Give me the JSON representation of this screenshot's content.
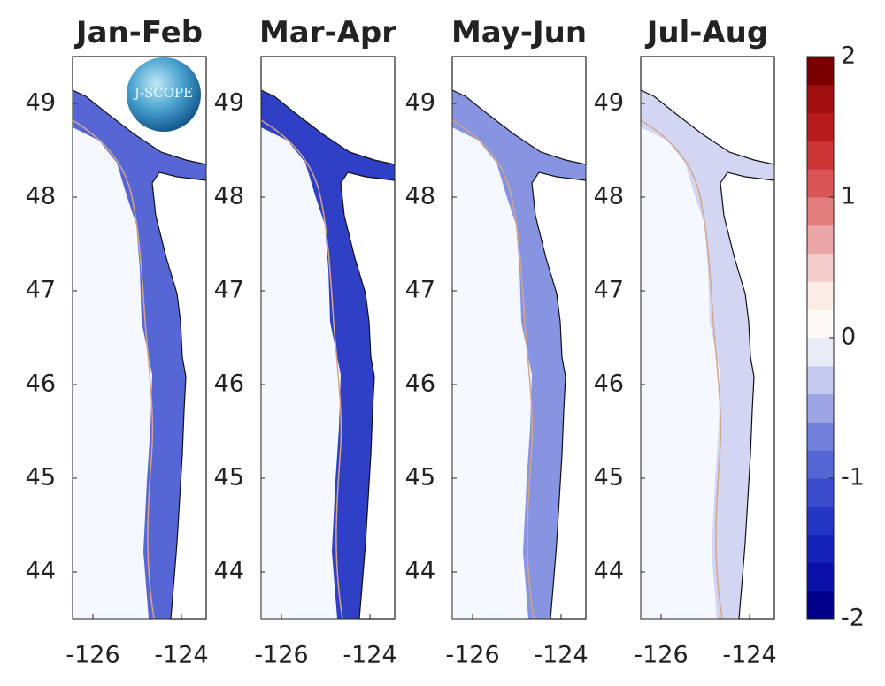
{
  "panels": [
    {
      "title": "Jan-Feb"
    },
    {
      "title": "Mar-Apr"
    },
    {
      "title": "May-Jun"
    },
    {
      "title": "Jul-Aug"
    }
  ],
  "ylim": [
    43.5,
    49.5
  ],
  "yticks": [
    44,
    45,
    46,
    47,
    48,
    49
  ],
  "xlim": [
    -126.46,
    -123.44
  ],
  "xticks": [
    -126,
    -124
  ],
  "colorbar": {
    "lim": [
      -2,
      2
    ],
    "ticks": [
      -2,
      -1,
      0,
      1,
      2
    ],
    "colors": [
      "#00008b",
      "#0a10a8",
      "#1522b8",
      "#2436c4",
      "#3a4ccc",
      "#5565d4",
      "#7380da",
      "#9da5e3",
      "#c5caef",
      "#e8ecf6",
      "#fdf9f6",
      "#fbece6",
      "#f4cdca",
      "#eba7a7",
      "#e27e7e",
      "#d85656",
      "#cc3535",
      "#b81b1b",
      "#a01010",
      "#7a0000"
    ]
  },
  "logo": "J-SCOPE"
}
